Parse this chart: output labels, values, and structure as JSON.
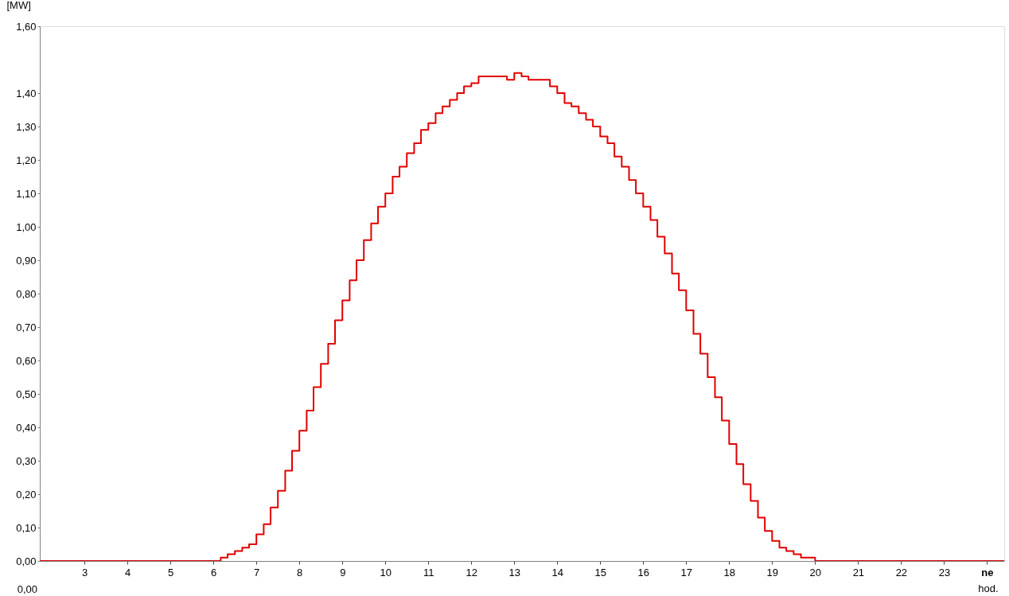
{
  "chart_data": {
    "type": "step",
    "xlabel": "hod.",
    "ylabel": "[MW]",
    "x": [
      1.96,
      6.17,
      6.33,
      6.5,
      6.67,
      6.83,
      7.0,
      7.17,
      7.33,
      7.5,
      7.67,
      7.83,
      8.0,
      8.17,
      8.33,
      8.5,
      8.67,
      8.83,
      9.0,
      9.17,
      9.33,
      9.5,
      9.67,
      9.83,
      10.0,
      10.17,
      10.33,
      10.5,
      10.67,
      10.83,
      11.0,
      11.17,
      11.33,
      11.5,
      11.67,
      11.83,
      12.0,
      12.17,
      12.33,
      12.5,
      12.67,
      12.83,
      13.0,
      13.17,
      13.33,
      13.5,
      13.67,
      13.83,
      14.0,
      14.17,
      14.33,
      14.5,
      14.67,
      14.83,
      15.0,
      15.17,
      15.33,
      15.5,
      15.67,
      15.83,
      16.0,
      16.17,
      16.33,
      16.5,
      16.67,
      16.83,
      17.0,
      17.17,
      17.33,
      17.5,
      17.67,
      17.83,
      18.0,
      18.17,
      18.33,
      18.5,
      18.67,
      18.83,
      19.0,
      19.17,
      19.33,
      19.5,
      19.67,
      19.83,
      20.0,
      24.4
    ],
    "series": [
      {
        "color": "#e00000",
        "values": [
          0,
          0.01,
          0.02,
          0.03,
          0.04,
          0.05,
          0.08,
          0.11,
          0.16,
          0.21,
          0.27,
          0.33,
          0.39,
          0.45,
          0.52,
          0.59,
          0.65,
          0.72,
          0.78,
          0.84,
          0.9,
          0.96,
          1.01,
          1.06,
          1.1,
          1.15,
          1.18,
          1.22,
          1.25,
          1.29,
          1.31,
          1.34,
          1.36,
          1.38,
          1.4,
          1.42,
          1.43,
          1.45,
          1.45,
          1.45,
          1.45,
          1.44,
          1.46,
          1.45,
          1.44,
          1.44,
          1.44,
          1.42,
          1.4,
          1.37,
          1.36,
          1.34,
          1.32,
          1.3,
          1.27,
          1.25,
          1.21,
          1.18,
          1.14,
          1.1,
          1.06,
          1.02,
          0.97,
          0.92,
          0.86,
          0.81,
          0.75,
          0.68,
          0.62,
          0.55,
          0.49,
          0.42,
          0.35,
          0.29,
          0.23,
          0.18,
          0.13,
          0.09,
          0.06,
          0.04,
          0.03,
          0.02,
          0.01,
          0.01,
          0,
          0
        ]
      }
    ],
    "xlim": [
      1.96,
      24.4
    ],
    "ylim": [
      0,
      1.6
    ],
    "xticks": [
      3,
      4,
      5,
      6,
      7,
      8,
      9,
      10,
      11,
      12,
      13,
      14,
      15,
      16,
      17,
      18,
      19,
      20,
      21,
      22,
      23,
      {
        "value": 24,
        "label": "ne"
      }
    ],
    "yticks": [
      {
        "value": 0,
        "label": "0,00"
      },
      {
        "value": 0.1,
        "label": "0,10"
      },
      {
        "value": 0.2,
        "label": "0,20"
      },
      {
        "value": 0.3,
        "label": "0,30"
      },
      {
        "value": 0.4,
        "label": "0,40"
      },
      {
        "value": 0.5,
        "label": "0,50"
      },
      {
        "value": 0.6,
        "label": "0,60"
      },
      {
        "value": 0.7,
        "label": "0,70"
      },
      {
        "value": 0.8,
        "label": "0,80"
      },
      {
        "value": 0.9,
        "label": "0,90"
      },
      {
        "value": 1.0,
        "label": "1,00"
      },
      {
        "value": 1.1,
        "label": "1,10"
      },
      {
        "value": 1.2,
        "label": "1,20"
      },
      {
        "value": 1.3,
        "label": "1,30"
      },
      {
        "value": 1.4,
        "label": "1,40"
      },
      {
        "value": 1.6,
        "label": "1,60"
      }
    ],
    "annotations": [
      "0,00"
    ],
    "grid": false
  }
}
